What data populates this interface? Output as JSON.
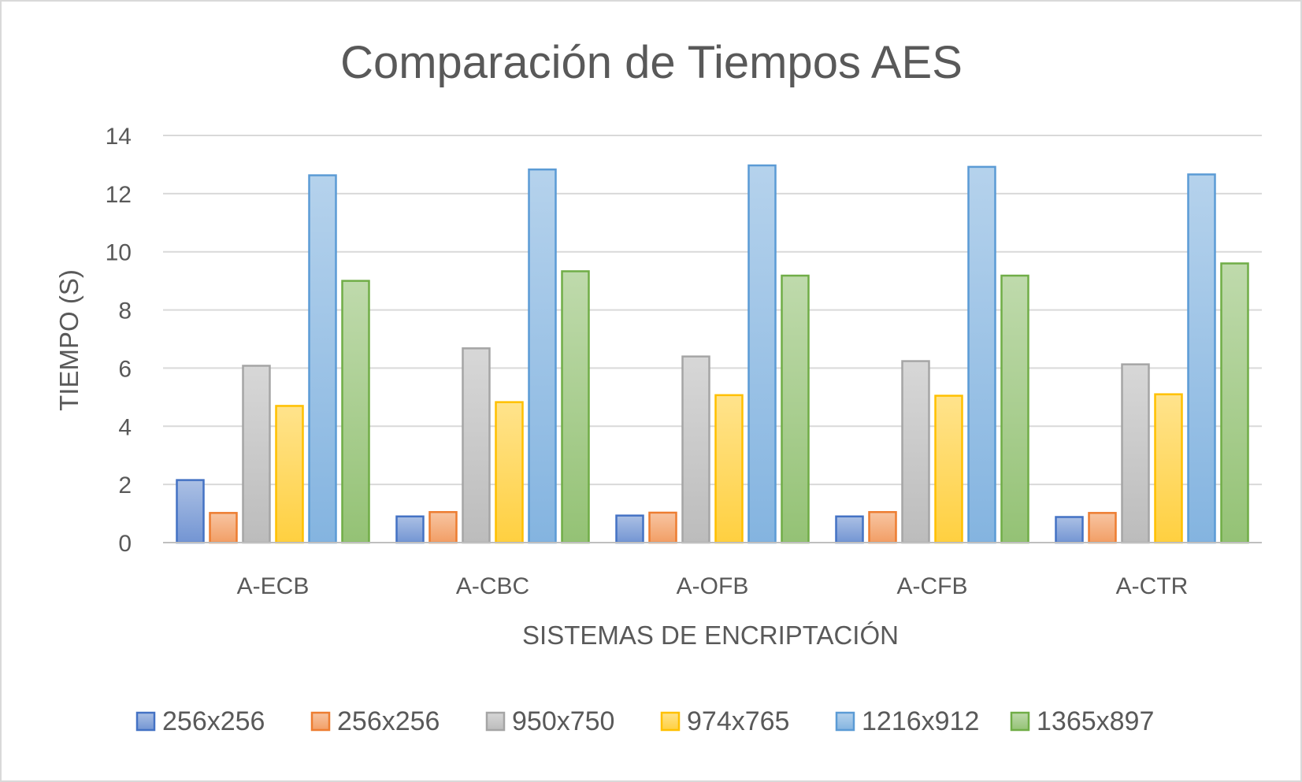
{
  "chart_data": {
    "type": "bar",
    "title": "Comparación de Tiempos AES",
    "xlabel": "SISTEMAS DE ENCRIPTACIÓN",
    "ylabel": "TIEMPO (S)",
    "ylim": [
      0,
      14
    ],
    "yticks": [
      0,
      2,
      4,
      6,
      8,
      10,
      12,
      14
    ],
    "grid": true,
    "legend": "bottom",
    "categories": [
      "A-ECB",
      "A-CBC",
      "A-OFB",
      "A-CFB",
      "A-CTR"
    ],
    "series": [
      {
        "name": "256x256",
        "color": "#4472c4",
        "values": [
          2.15,
          0.9,
          0.93,
          0.9,
          0.88
        ]
      },
      {
        "name": "256x256",
        "color": "#ed7d31",
        "values": [
          1.02,
          1.05,
          1.03,
          1.05,
          1.02
        ]
      },
      {
        "name": "950x750",
        "color": "#a5a5a5",
        "values": [
          6.08,
          6.68,
          6.4,
          6.24,
          6.13
        ]
      },
      {
        "name": "974x765",
        "color": "#ffc000",
        "values": [
          4.7,
          4.83,
          5.07,
          5.05,
          5.1
        ]
      },
      {
        "name": "1216x912",
        "color": "#5b9bd5",
        "values": [
          12.63,
          12.83,
          12.97,
          12.92,
          12.66
        ]
      },
      {
        "name": "1365x897",
        "color": "#70ad47",
        "values": [
          9.0,
          9.33,
          9.18,
          9.18,
          9.6
        ]
      }
    ]
  }
}
